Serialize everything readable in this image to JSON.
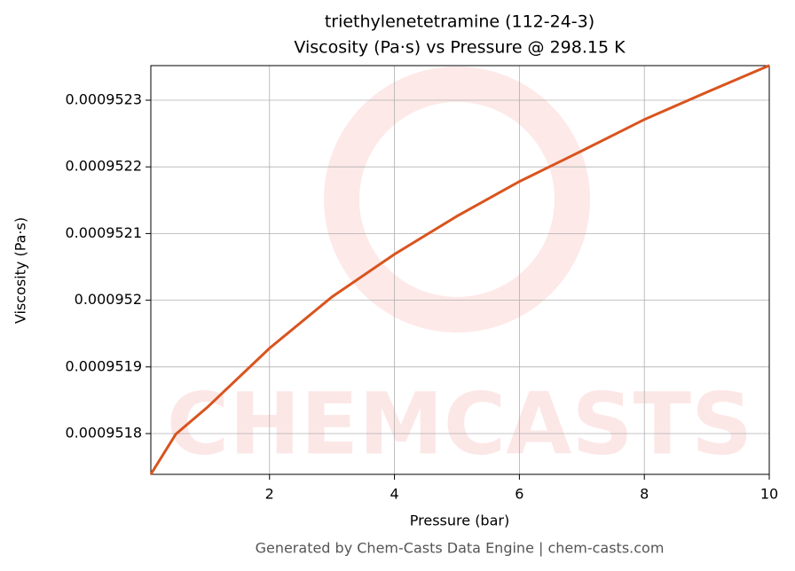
{
  "chart_data": {
    "type": "line",
    "title": "triethylenetetramine (112-24-3)",
    "subtitle": "Viscosity (Pa·s) vs Pressure @ 298.15 K",
    "xlabel": "Pressure (bar)",
    "ylabel": "Viscosity (Pa·s)",
    "footer": "Generated by Chem-Casts Data Engine | chem-casts.com",
    "watermark": "CHEMCASTS",
    "x": [
      0.1,
      0.5,
      1,
      2,
      3,
      4,
      5,
      6,
      7,
      8,
      9,
      10
    ],
    "series": [
      {
        "name": "Viscosity",
        "color": "#d9541e",
        "values": [
          0.000951739,
          0.0009517992,
          0.000951839,
          0.000951928,
          0.000952005,
          0.000952069,
          0.000952126,
          0.000952178,
          0.000952224,
          0.000952271,
          0.000952312,
          0.000952352
        ]
      }
    ],
    "xlim": [
      0.1,
      10
    ],
    "ylim": [
      0.00095173883,
      0.00095235186
    ],
    "xticks": [
      2,
      4,
      6,
      8,
      10
    ],
    "yticks": [
      0.0009518,
      0.0009519,
      0.000952,
      0.0009521,
      0.0009522,
      0.0009523
    ],
    "grid": true
  }
}
